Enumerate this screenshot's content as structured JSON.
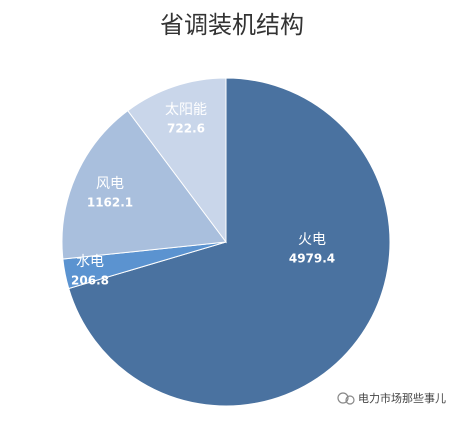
{
  "chart_data": {
    "type": "pie",
    "title": "省调装机结构",
    "categories": [
      "火电",
      "水电",
      "风电",
      "太阳能"
    ],
    "values": [
      4979.4,
      206.8,
      1162.1,
      722.6
    ],
    "colors": [
      "#4a72a0",
      "#5b93d0",
      "#a9bfdd",
      "#c9d6ea"
    ]
  },
  "watermark": "电力市场那些事儿"
}
